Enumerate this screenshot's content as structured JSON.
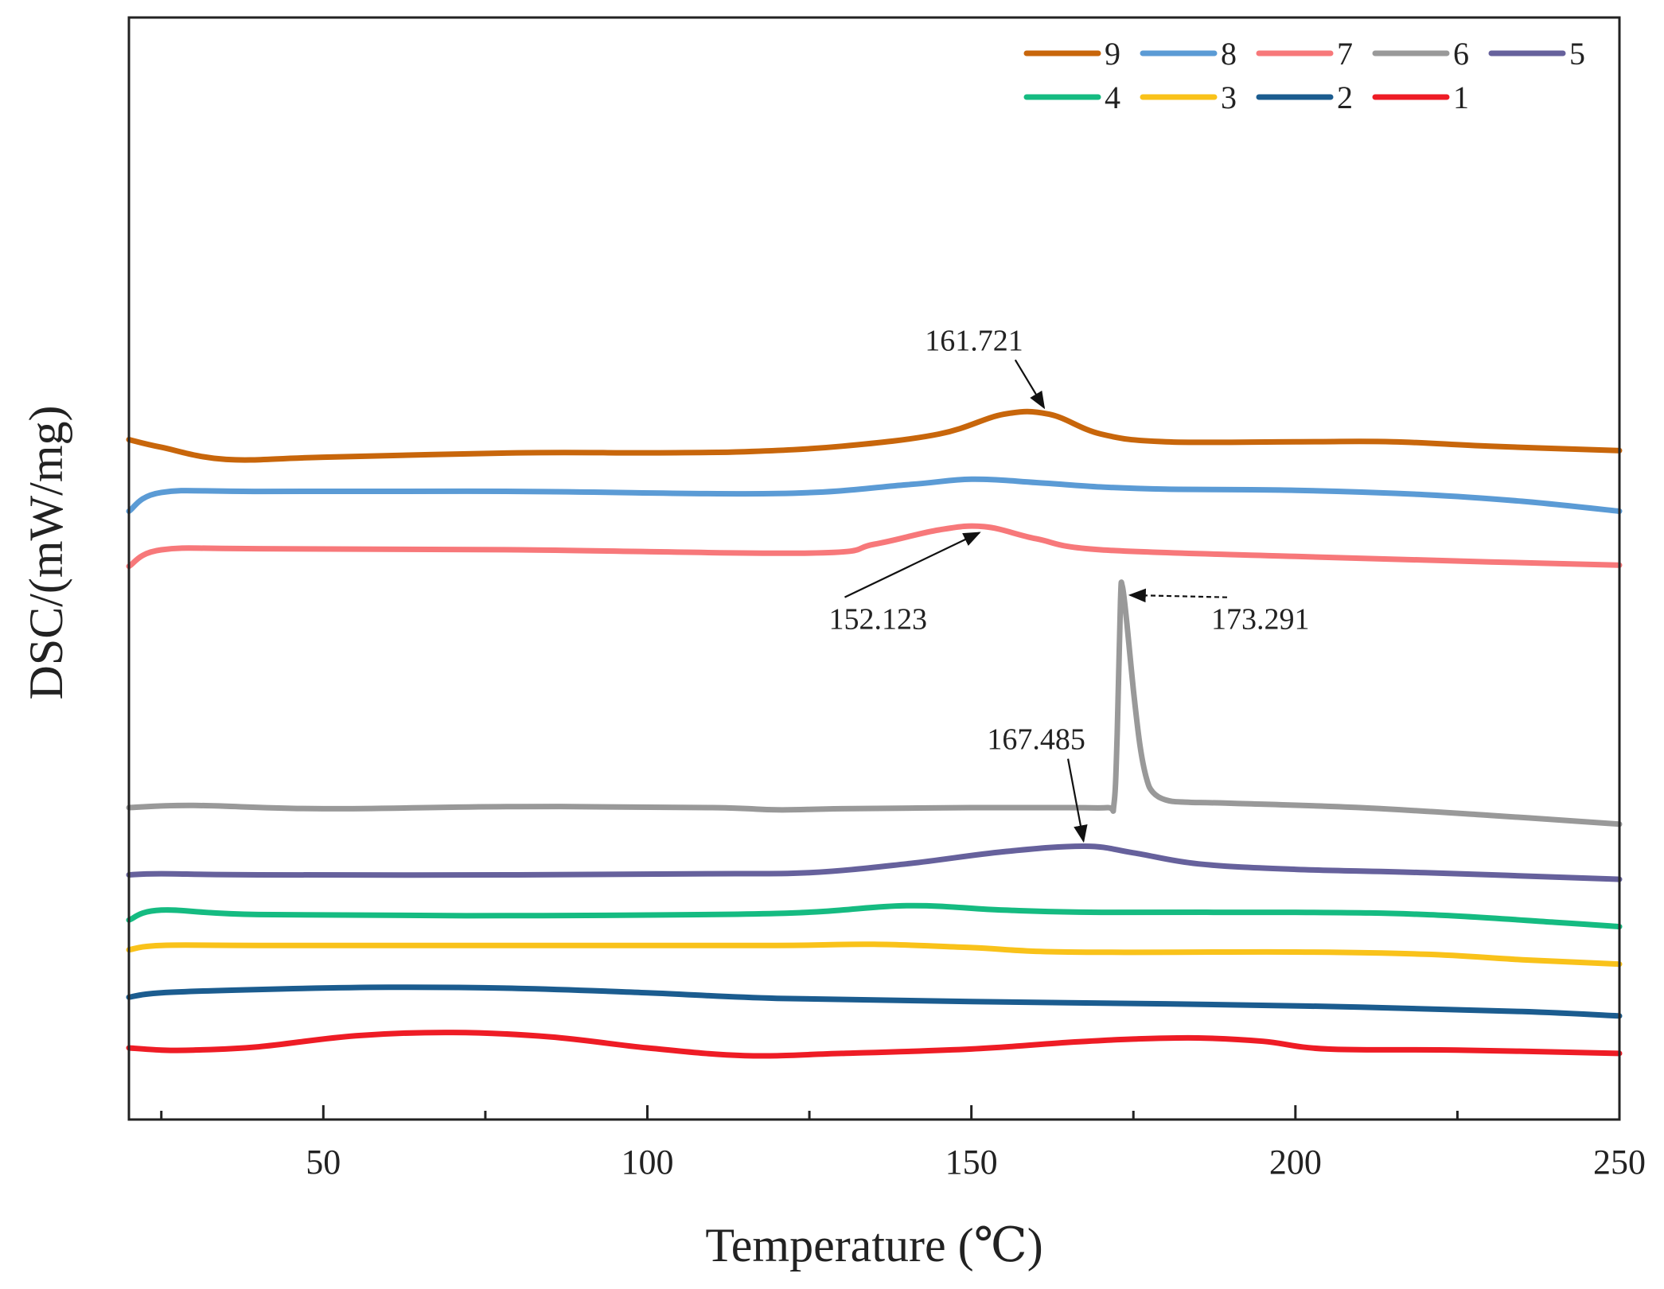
{
  "chart_data": {
    "type": "line",
    "title": "",
    "xlabel": "Temperature (℃)",
    "ylabel": "DSC/(mW/mg)",
    "xlim": [
      20,
      250
    ],
    "ylim": [
      0,
      1
    ],
    "x_ticks": [
      50,
      100,
      150,
      200,
      250
    ],
    "y_ticks": [],
    "grid": false,
    "legend_position": "top-right",
    "series": [
      {
        "name": "9",
        "color": "#C8660B",
        "x": [
          20,
          25,
          35,
          50,
          80,
          100,
          115,
          130,
          145,
          155,
          162,
          170,
          180,
          200,
          215,
          230,
          250
        ],
        "y": [
          0.617,
          0.61,
          0.599,
          0.601,
          0.605,
          0.605,
          0.606,
          0.611,
          0.622,
          0.64,
          0.64,
          0.622,
          0.615,
          0.615,
          0.615,
          0.611,
          0.607
        ]
      },
      {
        "name": "8",
        "color": "#5B9BD5",
        "x": [
          20,
          25,
          40,
          80,
          120,
          140,
          150,
          160,
          170,
          180,
          200,
          220,
          235,
          250
        ],
        "y": [
          0.552,
          0.569,
          0.57,
          0.57,
          0.568,
          0.576,
          0.581,
          0.578,
          0.574,
          0.572,
          0.571,
          0.567,
          0.561,
          0.552
        ]
      },
      {
        "name": "7",
        "color": "#F7787A",
        "x": [
          20,
          25,
          40,
          80,
          125,
          135,
          145,
          152,
          160,
          170,
          200,
          230,
          250
        ],
        "y": [
          0.502,
          0.517,
          0.518,
          0.517,
          0.514,
          0.522,
          0.535,
          0.538,
          0.527,
          0.517,
          0.511,
          0.506,
          0.503
        ]
      },
      {
        "name": "6",
        "color": "#999999",
        "x": [
          20,
          30,
          50,
          80,
          110,
          120,
          130,
          150,
          165,
          171,
          172,
          172.5,
          173,
          173.291,
          174,
          175,
          176,
          177,
          178,
          180,
          183,
          190,
          210,
          230,
          250
        ],
        "y": [
          0.283,
          0.285,
          0.282,
          0.284,
          0.283,
          0.281,
          0.282,
          0.283,
          0.283,
          0.283,
          0.286,
          0.35,
          0.47,
          0.484,
          0.45,
          0.39,
          0.34,
          0.31,
          0.297,
          0.29,
          0.288,
          0.287,
          0.283,
          0.276,
          0.268
        ]
      },
      {
        "name": "5",
        "color": "#66619C",
        "x": [
          20,
          25,
          40,
          80,
          110,
          125,
          140,
          155,
          167.485,
          175,
          185,
          200,
          220,
          250
        ],
        "y": [
          0.222,
          0.223,
          0.222,
          0.222,
          0.223,
          0.224,
          0.232,
          0.243,
          0.248,
          0.242,
          0.232,
          0.227,
          0.224,
          0.218
        ]
      },
      {
        "name": "4",
        "color": "#15BB81",
        "x": [
          20,
          25,
          40,
          80,
          120,
          140,
          155,
          170,
          200,
          220,
          240,
          250
        ],
        "y": [
          0.181,
          0.19,
          0.186,
          0.185,
          0.187,
          0.194,
          0.19,
          0.188,
          0.188,
          0.186,
          0.179,
          0.175
        ]
      },
      {
        "name": "3",
        "color": "#F9C21A",
        "x": [
          20,
          25,
          40,
          80,
          120,
          135,
          150,
          165,
          200,
          220,
          235,
          250
        ],
        "y": [
          0.154,
          0.158,
          0.158,
          0.158,
          0.158,
          0.159,
          0.156,
          0.152,
          0.152,
          0.15,
          0.145,
          0.141
        ]
      },
      {
        "name": "2",
        "color": "#1B5C8F",
        "x": [
          20,
          25,
          40,
          60,
          80,
          100,
          120,
          150,
          180,
          210,
          235,
          250
        ],
        "y": [
          0.111,
          0.115,
          0.118,
          0.12,
          0.119,
          0.115,
          0.11,
          0.107,
          0.105,
          0.102,
          0.098,
          0.094
        ]
      },
      {
        "name": "1",
        "color": "#EE1C25",
        "x": [
          20,
          25,
          30,
          40,
          55,
          70,
          85,
          100,
          115,
          130,
          150,
          165,
          175,
          185,
          195,
          205,
          225,
          250
        ],
        "y": [
          0.065,
          0.063,
          0.063,
          0.066,
          0.076,
          0.079,
          0.075,
          0.065,
          0.058,
          0.06,
          0.064,
          0.07,
          0.073,
          0.074,
          0.071,
          0.064,
          0.063,
          0.06
        ]
      }
    ],
    "annotations": [
      {
        "text": "161.721",
        "series": "9",
        "x": 161.721,
        "y": 0.641,
        "label_x": 158,
        "label_y": 0.698,
        "label_anchor": "end"
      },
      {
        "text": "152.123",
        "series": "7",
        "x": 152.123,
        "y": 0.535,
        "label_x": 128,
        "label_y": 0.445,
        "label_anchor": "start"
      },
      {
        "text": "173.291",
        "series": "6",
        "x": 173.5,
        "y": 0.476,
        "label_x": 187,
        "label_y": 0.445,
        "label_anchor": "start"
      },
      {
        "text": "167.485",
        "series": "5",
        "x": 167.485,
        "y": 0.247,
        "label_x": 160,
        "label_y": 0.336,
        "label_anchor": "middle"
      }
    ],
    "legend_rows": [
      [
        "9",
        "8",
        "7",
        "6",
        "5"
      ],
      [
        "4",
        "3",
        "2",
        "1"
      ]
    ]
  }
}
